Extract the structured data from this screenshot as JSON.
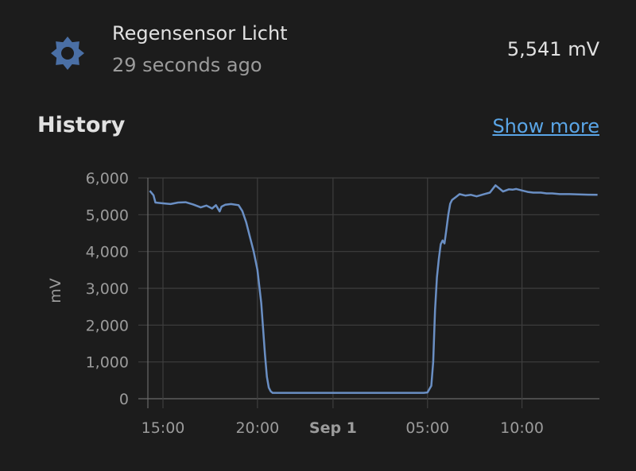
{
  "entity": {
    "name": "Regensensor Licht",
    "last_changed": "29 seconds ago",
    "state": "5,541 mV",
    "icon": "brightness-icon",
    "icon_color": "#4a6fa5"
  },
  "history": {
    "title": "History",
    "show_more_label": "Show more"
  },
  "chart_data": {
    "type": "line",
    "ylabel": "mV",
    "ylim": [
      0,
      6000
    ],
    "y_ticks": [
      0,
      1000,
      2000,
      3000,
      4000,
      5000,
      6000
    ],
    "y_tick_labels": [
      "0",
      "1,000",
      "2,000",
      "3,000",
      "4,000",
      "5,000",
      "6,000"
    ],
    "x_range_hours": [
      14.2,
      28.1
    ],
    "x_ticks": [
      {
        "hour": 15,
        "label": "15:00",
        "bold": false
      },
      {
        "hour": 20,
        "label": "20:00",
        "bold": false
      },
      {
        "hour": 24,
        "label": "Sep 1",
        "bold": true
      },
      {
        "hour": 29,
        "label": "05:00",
        "bold": false
      },
      {
        "hour": 34,
        "label": "10:00",
        "bold": false
      }
    ],
    "grid": true,
    "line_color": "#6a8fc4",
    "series": [
      {
        "x": [
          14.3,
          14.5,
          14.6,
          15.0,
          15.4,
          15.8,
          16.2,
          16.6,
          17.0,
          17.3,
          17.6,
          17.8,
          18.0,
          18.1,
          18.3,
          18.6,
          19.0,
          19.2,
          19.4,
          19.6,
          19.8,
          20.0,
          20.2,
          20.4,
          20.5,
          20.6,
          20.7,
          20.8,
          20.9,
          21.0,
          21.2,
          22.0,
          23.0,
          24.0,
          25.0,
          26.0,
          27.0,
          28.0,
          28.5,
          28.8,
          29.0,
          29.2,
          29.3,
          29.4,
          29.5,
          29.6,
          29.7,
          29.8,
          29.9,
          30.0,
          30.1,
          30.2,
          30.3,
          30.5,
          30.7,
          31.0,
          31.3,
          31.6,
          32.0,
          32.3,
          32.6,
          33.0,
          33.3,
          33.5,
          33.7,
          34.0,
          34.3,
          34.6,
          35.0,
          35.3,
          35.6,
          36.0,
          36.5,
          37.0,
          37.5,
          38.0
        ],
        "y": [
          5650,
          5530,
          5330,
          5310,
          5290,
          5330,
          5340,
          5280,
          5200,
          5250,
          5170,
          5260,
          5090,
          5220,
          5270,
          5290,
          5260,
          5100,
          4800,
          4400,
          4000,
          3500,
          2600,
          1200,
          600,
          300,
          200,
          160,
          160,
          160,
          160,
          160,
          160,
          160,
          160,
          160,
          160,
          160,
          160,
          160,
          170,
          350,
          1000,
          2400,
          3300,
          3800,
          4200,
          4300,
          4220,
          4600,
          5000,
          5300,
          5400,
          5480,
          5560,
          5520,
          5540,
          5500,
          5560,
          5600,
          5800,
          5630,
          5690,
          5680,
          5700,
          5660,
          5620,
          5600,
          5600,
          5580,
          5580,
          5560,
          5560,
          5550,
          5545,
          5541
        ]
      }
    ]
  }
}
